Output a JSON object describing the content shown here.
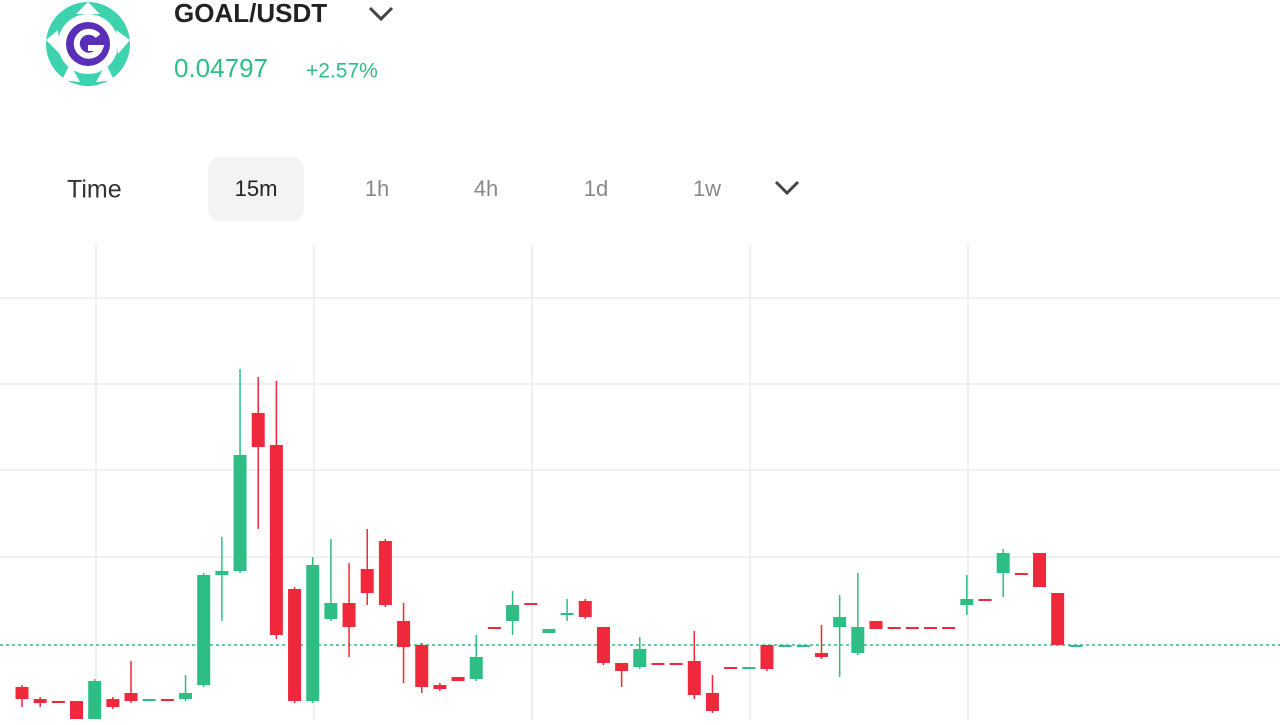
{
  "header": {
    "pair": "GOAL/USDT",
    "change": "+2.57%"
  },
  "tabs": {
    "label": "Time",
    "items": [
      "15m",
      "1h",
      "4h",
      "1d",
      "1w"
    ]
  },
  "chart_data": {
    "type": "candlestick",
    "last_price": 0.04797,
    "up_color": "#2ebd85",
    "down_color": "#f0283c",
    "ylim": [
      0.04759,
      0.04997
    ],
    "open": [
      0.04776,
      0.0477,
      0.04769,
      0.04769,
      0.0476,
      0.0477,
      0.04773,
      0.0477,
      0.0477,
      0.0477,
      0.04777,
      0.04832,
      0.04834,
      0.04913,
      0.04897,
      0.04825,
      0.04769,
      0.0481,
      0.04818,
      0.04835,
      0.04849,
      0.04809,
      0.04797,
      0.04777,
      0.04781,
      0.0478,
      0.04806,
      0.04809,
      0.04818,
      0.04803,
      0.04812,
      0.04819,
      0.04806,
      0.04788,
      0.04786,
      0.04788,
      0.04788,
      0.04789,
      0.04773,
      0.04786,
      0.04786,
      0.04797,
      0.04797,
      0.04797,
      0.04793,
      0.04806,
      0.04793,
      0.04809,
      0.04806,
      0.04806,
      0.04806,
      0.04806,
      0.04817,
      0.0482,
      0.04833,
      0.04833,
      0.04843,
      0.04823,
      0.04797
    ],
    "high": [
      0.04777,
      0.04771,
      0.04769,
      0.04769,
      0.0478,
      0.04771,
      0.04789,
      0.0477,
      0.0477,
      0.04782,
      0.04833,
      0.04851,
      0.04935,
      0.04931,
      0.04929,
      0.04826,
      0.04841,
      0.0485,
      0.04838,
      0.04855,
      0.0485,
      0.04818,
      0.04798,
      0.04778,
      0.04781,
      0.04802,
      0.04806,
      0.04824,
      0.04818,
      0.04805,
      0.0482,
      0.0482,
      0.04806,
      0.04788,
      0.04801,
      0.04788,
      0.04788,
      0.04804,
      0.04782,
      0.04786,
      0.04786,
      0.04797,
      0.04797,
      0.04797,
      0.04807,
      0.04822,
      0.04833,
      0.04809,
      0.04806,
      0.04806,
      0.04806,
      0.04806,
      0.04832,
      0.0482,
      0.04845,
      0.04833,
      0.04843,
      0.04823,
      0.04797
    ],
    "low": [
      0.04766,
      0.04766,
      0.04768,
      0.0476,
      0.0476,
      0.04765,
      0.04768,
      0.0477,
      0.04769,
      0.04769,
      0.04776,
      0.04809,
      0.04833,
      0.04855,
      0.048,
      0.04768,
      0.04768,
      0.04809,
      0.04791,
      0.04817,
      0.04816,
      0.04778,
      0.04773,
      0.04774,
      0.04779,
      0.04779,
      0.04805,
      0.04802,
      0.04817,
      0.04803,
      0.04809,
      0.0481,
      0.04787,
      0.04776,
      0.04785,
      0.04787,
      0.04787,
      0.0477,
      0.04763,
      0.04785,
      0.04786,
      0.04784,
      0.04797,
      0.04797,
      0.0479,
      0.04781,
      0.04792,
      0.04805,
      0.04805,
      0.04805,
      0.04805,
      0.04805,
      0.04812,
      0.04819,
      0.04821,
      0.04832,
      0.04826,
      0.04797,
      0.04797
    ],
    "close": [
      0.0477,
      0.04768,
      0.04768,
      0.0476,
      0.04779,
      0.04766,
      0.04769,
      0.0477,
      0.04769,
      0.04773,
      0.04832,
      0.04834,
      0.04892,
      0.04896,
      0.04802,
      0.04769,
      0.04837,
      0.04818,
      0.04806,
      0.04823,
      0.04817,
      0.04796,
      0.04776,
      0.04775,
      0.04779,
      0.04791,
      0.04805,
      0.04817,
      0.04817,
      0.04805,
      0.04813,
      0.04811,
      0.04788,
      0.04784,
      0.04795,
      0.04787,
      0.04787,
      0.04772,
      0.04764,
      0.04785,
      0.04786,
      0.04785,
      0.04797,
      0.04797,
      0.04791,
      0.04811,
      0.04806,
      0.04805,
      0.04805,
      0.04805,
      0.04805,
      0.04805,
      0.0482,
      0.04819,
      0.04843,
      0.04832,
      0.04826,
      0.04797,
      0.04797
    ]
  }
}
